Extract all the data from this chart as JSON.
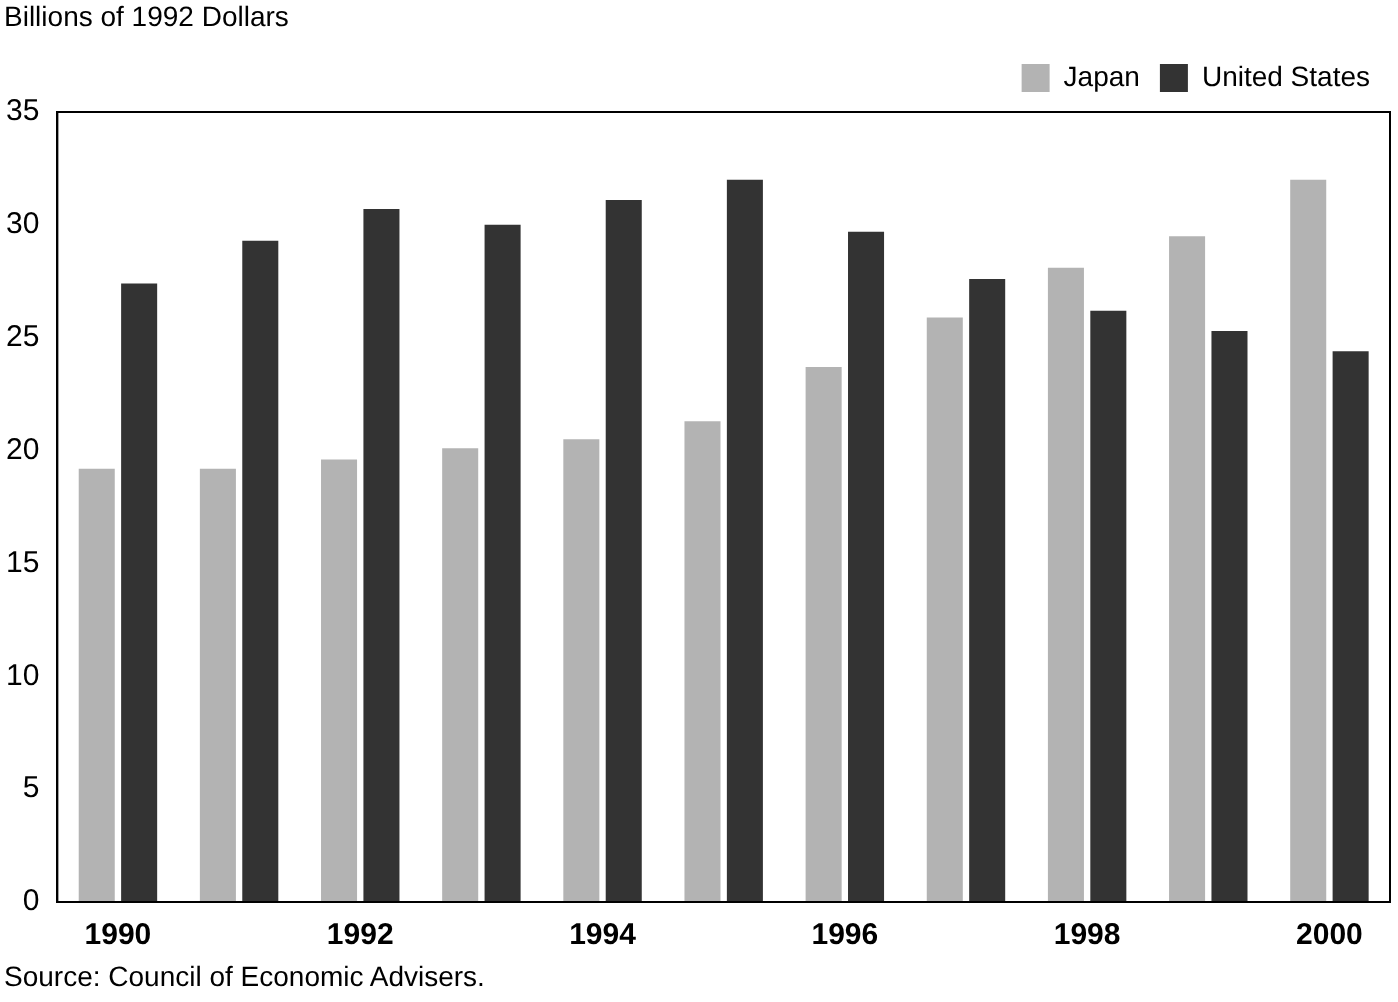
{
  "chart_data": {
    "type": "bar",
    "ylabel": "Billions of 1992 Dollars",
    "categories": [
      "1990",
      null,
      "1992",
      null,
      "1994",
      null,
      "1996",
      null,
      "1998",
      null,
      "2000"
    ],
    "series": [
      {
        "name": "Japan",
        "color": "#b3b3b3",
        "values": [
          19.2,
          19.2,
          19.6,
          20.1,
          20.5,
          21.3,
          23.7,
          25.9,
          28.1,
          29.5,
          32.0
        ]
      },
      {
        "name": "United States",
        "color": "#333333",
        "values": [
          27.4,
          29.3,
          30.7,
          30.0,
          31.1,
          32.0,
          29.7,
          27.6,
          26.2,
          25.3,
          24.4
        ]
      }
    ],
    "ylim": [
      0,
      35
    ],
    "yticks": [
      0,
      5,
      10,
      15,
      20,
      25,
      30,
      35
    ],
    "grid": false,
    "legend": "top right",
    "annotations": [
      "Source: Council of Economic Advisers."
    ]
  }
}
